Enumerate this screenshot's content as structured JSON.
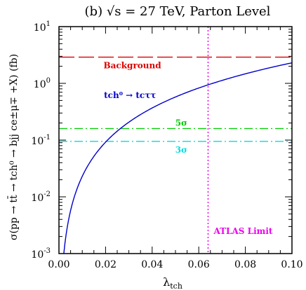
{
  "chart_data": {
    "type": "line",
    "title": "(b) √s  = 27 TeV, Parton Level",
    "xlabel": "λ",
    "xlabel_sub": "tch",
    "ylabel": "σ(pp → tt̄ → tch⁰ → bjj ce±μ∓ +X) (fb)",
    "xlim": [
      0.0,
      0.1
    ],
    "ylim": [
      0.001,
      10
    ],
    "yscale": "log",
    "x_ticks": [
      "0.00",
      "0.02",
      "0.04",
      "0.06",
      "0.08",
      "0.10"
    ],
    "x_tick_values": [
      0.0,
      0.02,
      0.04,
      0.06,
      0.08,
      0.1
    ],
    "y_ticks": [
      {
        "base": "10",
        "exp": "1",
        "value": 10
      },
      {
        "base": "10",
        "exp": "0",
        "value": 1
      },
      {
        "base": "10",
        "exp": "-1",
        "value": 0.1
      },
      {
        "base": "10",
        "exp": "-2",
        "value": 0.01
      },
      {
        "base": "10",
        "exp": "-3",
        "value": 0.001
      }
    ],
    "grid": false,
    "signal": {
      "name": "tch⁰ → tcττ",
      "color": "#0000cc",
      "scale_coefficient": 230,
      "x_start": 0.0021
    },
    "lines": [
      {
        "name": "Background",
        "value": 2.9,
        "color": "#dd0000",
        "style": "dashed"
      },
      {
        "name": "5σ",
        "value": 0.16,
        "color": "#00cc00",
        "style": "dashdot"
      },
      {
        "name": "3σ",
        "value": 0.095,
        "color": "#00dddd",
        "style": "dashdot"
      }
    ],
    "vertical_line": {
      "name": "ATLAS Limit",
      "x": 0.064,
      "color": "#ee00ee",
      "style": "dotted"
    }
  }
}
